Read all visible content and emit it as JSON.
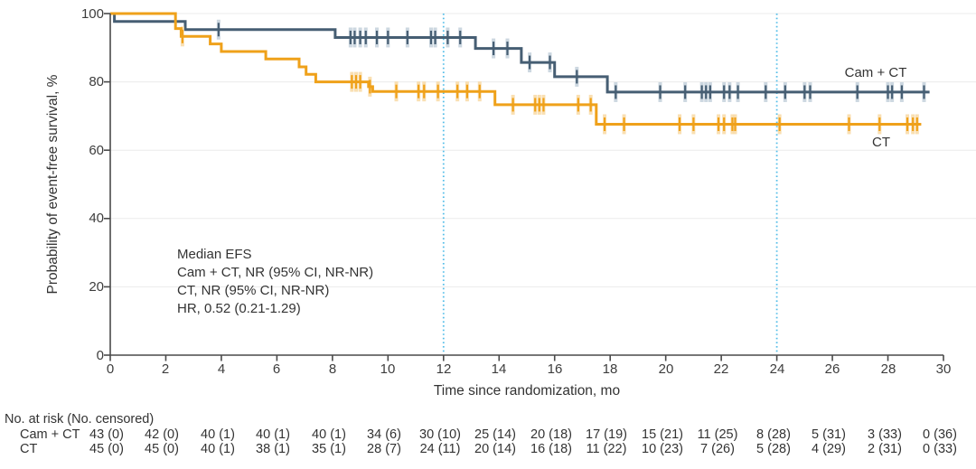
{
  "figure": {
    "background": "#ffffff",
    "text_color": "#333333",
    "axis_color": "#4a4a4a",
    "grid_color": "#ebebeb"
  },
  "y_axis": {
    "title": "Probability of event-free survival, %",
    "ticks": [
      0,
      20,
      40,
      60,
      80,
      100
    ],
    "range": [
      0,
      100
    ]
  },
  "x_axis": {
    "title": "Time since randomization, mo",
    "ticks": [
      0,
      2,
      4,
      6,
      8,
      10,
      12,
      14,
      16,
      18,
      20,
      22,
      24,
      26,
      28,
      30
    ],
    "range": [
      0,
      30
    ]
  },
  "annotation": {
    "lines": [
      "Median EFS",
      "Cam + CT, NR (95% CI, NR-NR)",
      "CT, NR (95% CI, NR-NR)",
      "HR, 0.52 (0.21-1.29)"
    ]
  },
  "curve_labels": {
    "cam_ct": "Cam + CT",
    "ct": "CT"
  },
  "chart_data": {
    "type": "line",
    "subtype": "kaplan-meier-step",
    "title": "",
    "xlabel": "Time since randomization, mo",
    "ylabel": "Probability of event-free survival, %",
    "xlim": [
      0,
      30
    ],
    "ylim": [
      0,
      100
    ],
    "grid": "horizontal-light",
    "reference_lines_x": [
      12,
      24
    ],
    "reference_line_color": "#53bde8",
    "series": [
      {
        "name": "Cam + CT",
        "color": "#465e73",
        "halo_color": "#c3d0da",
        "steps": [
          [
            0,
            100
          ],
          [
            0.15,
            97.7
          ],
          [
            2.7,
            95.3
          ],
          [
            8.1,
            93.0
          ],
          [
            13.15,
            89.8
          ],
          [
            14.8,
            85.7
          ],
          [
            16.0,
            81.5
          ],
          [
            17.9,
            77.0
          ]
        ],
        "end_x": 29.5,
        "censors": [
          [
            3.9,
            95.3
          ],
          [
            8.65,
            93.0
          ],
          [
            8.8,
            93.0
          ],
          [
            9.0,
            93.0
          ],
          [
            9.2,
            93.0
          ],
          [
            9.6,
            93.0
          ],
          [
            10.0,
            93.0
          ],
          [
            10.7,
            93.0
          ],
          [
            11.55,
            93.0
          ],
          [
            11.7,
            93.0
          ],
          [
            12.15,
            93.0
          ],
          [
            12.6,
            93.0
          ],
          [
            13.8,
            89.8
          ],
          [
            14.3,
            89.8
          ],
          [
            15.1,
            85.7
          ],
          [
            15.83,
            85.7
          ],
          [
            16.8,
            81.5
          ],
          [
            18.2,
            77.0
          ],
          [
            19.8,
            77.0
          ],
          [
            20.7,
            77.0
          ],
          [
            21.3,
            77.0
          ],
          [
            21.45,
            77.0
          ],
          [
            21.6,
            77.0
          ],
          [
            22.1,
            77.0
          ],
          [
            22.3,
            77.0
          ],
          [
            22.6,
            77.0
          ],
          [
            23.6,
            77.0
          ],
          [
            24.3,
            77.0
          ],
          [
            25.0,
            77.0
          ],
          [
            25.2,
            77.0
          ],
          [
            26.9,
            77.0
          ],
          [
            28.0,
            77.0
          ],
          [
            28.15,
            77.0
          ],
          [
            28.5,
            77.0
          ],
          [
            29.3,
            77.0
          ]
        ]
      },
      {
        "name": "CT",
        "color": "#efa11a",
        "halo_color": "#f8d9a4",
        "steps": [
          [
            0,
            100
          ],
          [
            2.35,
            95.6
          ],
          [
            2.55,
            93.3
          ],
          [
            3.6,
            91.1
          ],
          [
            4.0,
            88.9
          ],
          [
            5.6,
            86.7
          ],
          [
            6.8,
            84.4
          ],
          [
            7.05,
            82.2
          ],
          [
            7.4,
            80.0
          ],
          [
            9.3,
            78.6
          ],
          [
            9.45,
            77.2
          ],
          [
            13.85,
            73.3
          ],
          [
            17.5,
            67.6
          ]
        ],
        "end_x": 29.2,
        "censors": [
          [
            2.6,
            93.3
          ],
          [
            8.7,
            80.0
          ],
          [
            8.85,
            80.0
          ],
          [
            9.0,
            80.0
          ],
          [
            9.35,
            78.6
          ],
          [
            10.3,
            77.2
          ],
          [
            11.1,
            77.2
          ],
          [
            11.3,
            77.2
          ],
          [
            11.8,
            77.2
          ],
          [
            12.5,
            77.2
          ],
          [
            12.85,
            77.2
          ],
          [
            13.3,
            77.2
          ],
          [
            14.5,
            73.3
          ],
          [
            15.3,
            73.3
          ],
          [
            15.45,
            73.3
          ],
          [
            15.6,
            73.3
          ],
          [
            16.85,
            73.3
          ],
          [
            17.3,
            73.3
          ],
          [
            17.8,
            67.6
          ],
          [
            18.5,
            67.6
          ],
          [
            20.5,
            67.6
          ],
          [
            21.0,
            67.6
          ],
          [
            21.9,
            67.6
          ],
          [
            22.1,
            67.6
          ],
          [
            22.4,
            67.6
          ],
          [
            22.5,
            67.6
          ],
          [
            24.1,
            67.6
          ],
          [
            26.6,
            67.6
          ],
          [
            27.7,
            67.6
          ],
          [
            28.7,
            67.6
          ],
          [
            28.9,
            67.6
          ],
          [
            29.05,
            67.6
          ]
        ]
      }
    ]
  },
  "risk_table": {
    "header": "No. at risk (No. censored)",
    "time_points": [
      0,
      2,
      4,
      6,
      8,
      10,
      12,
      14,
      16,
      18,
      20,
      22,
      24,
      26,
      28,
      30
    ],
    "rows": [
      {
        "label": "Cam + CT",
        "values": [
          "43 (0)",
          "42 (0)",
          "40 (1)",
          "40 (1)",
          "40 (1)",
          "34 (6)",
          "30 (10)",
          "25 (14)",
          "20 (18)",
          "17 (19)",
          "15 (21)",
          "11 (25)",
          "8 (28)",
          "5 (31)",
          "3 (33)",
          "0 (36)"
        ]
      },
      {
        "label": "CT",
        "values": [
          "45 (0)",
          "45 (0)",
          "40 (1)",
          "38 (1)",
          "35 (1)",
          "28 (7)",
          "24 (11)",
          "20 (14)",
          "16 (18)",
          "11 (22)",
          "10 (23)",
          "7 (26)",
          "5 (28)",
          "4 (29)",
          "2 (31)",
          "0 (33)"
        ]
      }
    ]
  }
}
